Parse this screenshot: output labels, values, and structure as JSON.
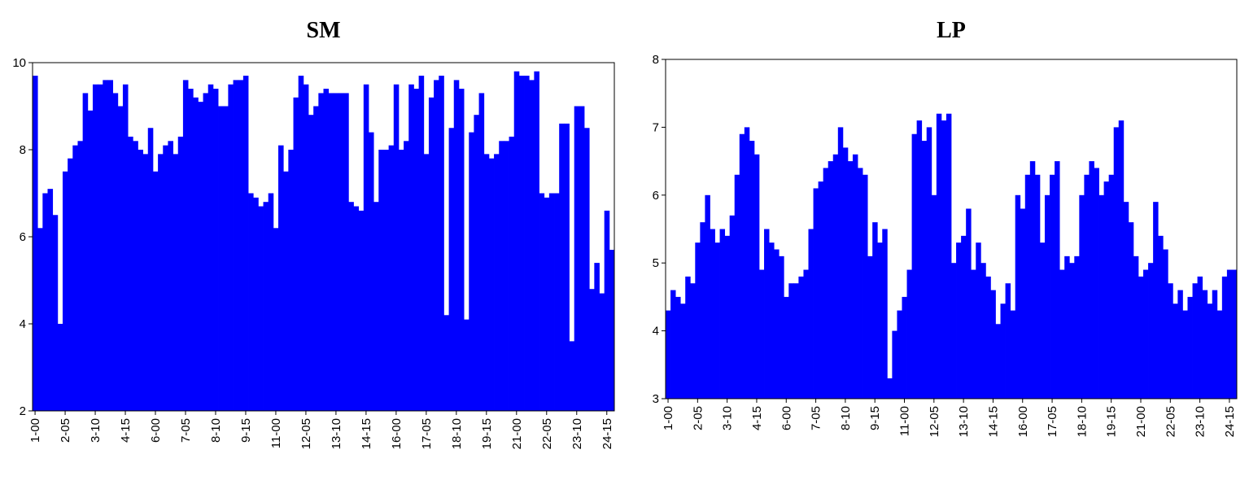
{
  "chart_data": [
    {
      "type": "bar",
      "title": "SM",
      "color": "#0000ff",
      "ylim": [
        2,
        10
      ],
      "yticks": [
        2,
        4,
        6,
        8,
        10
      ],
      "grid": false,
      "categories": [
        "1-00",
        null,
        null,
        null,
        null,
        null,
        "2-05",
        null,
        null,
        null,
        null,
        null,
        "3-10",
        null,
        null,
        null,
        null,
        null,
        "4-15",
        null,
        null,
        null,
        null,
        null,
        "6-00",
        null,
        null,
        null,
        null,
        null,
        "7-05",
        null,
        null,
        null,
        null,
        null,
        "8-10",
        null,
        null,
        null,
        null,
        null,
        "9-15",
        null,
        null,
        null,
        null,
        null,
        "11-00",
        null,
        null,
        null,
        null,
        null,
        "12-05",
        null,
        null,
        null,
        null,
        null,
        "13-10",
        null,
        null,
        null,
        null,
        null,
        "14-15",
        null,
        null,
        null,
        null,
        null,
        "16-00",
        null,
        null,
        null,
        null,
        null,
        "17-05",
        null,
        null,
        null,
        null,
        null,
        "18-10",
        null,
        null,
        null,
        null,
        null,
        "19-15",
        null,
        null,
        null,
        null,
        null,
        "21-00",
        null,
        null,
        null,
        null,
        null,
        "22-05",
        null,
        null,
        null,
        null,
        null,
        "23-10",
        null,
        null,
        null,
        null,
        null,
        "24-15",
        null
      ],
      "values": [
        9.7,
        6.2,
        7.0,
        7.1,
        6.5,
        4.0,
        7.5,
        7.8,
        8.1,
        8.2,
        9.3,
        8.9,
        9.5,
        9.5,
        9.6,
        9.6,
        9.3,
        9.0,
        9.5,
        8.3,
        8.2,
        8.0,
        7.9,
        8.5,
        7.5,
        7.9,
        8.1,
        8.2,
        7.9,
        8.3,
        9.6,
        9.4,
        9.2,
        9.1,
        9.3,
        9.5,
        9.4,
        9.0,
        9.0,
        9.5,
        9.6,
        9.6,
        9.7,
        7.0,
        6.9,
        6.7,
        6.8,
        7.0,
        6.2,
        8.1,
        7.5,
        8.0,
        9.2,
        9.7,
        9.5,
        8.8,
        9.0,
        9.3,
        9.4,
        9.3,
        9.3,
        9.3,
        9.3,
        6.8,
        6.7,
        6.6,
        9.5,
        8.4,
        6.8,
        8.0,
        8.0,
        8.1,
        9.5,
        8.0,
        8.2,
        9.5,
        9.4,
        9.7,
        7.9,
        9.2,
        9.6,
        9.7,
        4.2,
        8.5,
        9.6,
        9.4,
        4.1,
        8.4,
        8.8,
        9.3,
        7.9,
        7.8,
        7.9,
        8.2,
        8.2,
        8.3,
        9.8,
        9.7,
        9.7,
        9.6,
        9.8,
        7.0,
        6.9,
        7.0,
        7.0,
        8.6,
        8.6,
        3.6,
        9.0,
        9.0,
        8.5,
        4.8,
        5.4,
        4.7,
        6.6,
        5.7
      ]
    },
    {
      "type": "bar",
      "title": "LP",
      "color": "#0000ff",
      "ylim": [
        3,
        8
      ],
      "yticks": [
        3,
        4,
        5,
        6,
        7,
        8
      ],
      "grid": false,
      "categories": [
        "1-00",
        null,
        null,
        null,
        null,
        null,
        "2-05",
        null,
        null,
        null,
        null,
        null,
        "3-10",
        null,
        null,
        null,
        null,
        null,
        "4-15",
        null,
        null,
        null,
        null,
        null,
        "6-00",
        null,
        null,
        null,
        null,
        null,
        "7-05",
        null,
        null,
        null,
        null,
        null,
        "8-10",
        null,
        null,
        null,
        null,
        null,
        "9-15",
        null,
        null,
        null,
        null,
        null,
        "11-00",
        null,
        null,
        null,
        null,
        null,
        "12-05",
        null,
        null,
        null,
        null,
        null,
        "13-10",
        null,
        null,
        null,
        null,
        null,
        "14-15",
        null,
        null,
        null,
        null,
        null,
        "16-00",
        null,
        null,
        null,
        null,
        null,
        "17-05",
        null,
        null,
        null,
        null,
        null,
        "18-10",
        null,
        null,
        null,
        null,
        null,
        "19-15",
        null,
        null,
        null,
        null,
        null,
        "21-00",
        null,
        null,
        null,
        null,
        null,
        "22-05",
        null,
        null,
        null,
        null,
        null,
        "23-10",
        null,
        null,
        null,
        null,
        null,
        "24-15",
        null
      ],
      "values": [
        4.3,
        4.6,
        4.5,
        4.4,
        4.8,
        4.7,
        5.3,
        5.6,
        6.0,
        5.5,
        5.3,
        5.5,
        5.4,
        5.7,
        6.3,
        6.9,
        7.0,
        6.8,
        6.6,
        4.9,
        5.5,
        5.3,
        5.2,
        5.1,
        4.5,
        4.7,
        4.7,
        4.8,
        4.9,
        5.5,
        6.1,
        6.2,
        6.4,
        6.5,
        6.6,
        7.0,
        6.7,
        6.5,
        6.6,
        6.4,
        6.3,
        5.1,
        5.6,
        5.3,
        5.5,
        3.3,
        4.0,
        4.3,
        4.5,
        4.9,
        6.9,
        7.1,
        6.8,
        7.0,
        6.0,
        7.2,
        7.1,
        7.2,
        5.0,
        5.3,
        5.4,
        5.8,
        4.9,
        5.3,
        5.0,
        4.8,
        4.6,
        4.1,
        4.4,
        4.7,
        4.3,
        6.0,
        5.8,
        6.3,
        6.5,
        6.3,
        5.3,
        6.0,
        6.3,
        6.5,
        4.9,
        5.1,
        5.0,
        5.1,
        6.0,
        6.3,
        6.5,
        6.4,
        6.0,
        6.2,
        6.3,
        7.0,
        7.1,
        5.9,
        5.6,
        5.1,
        4.8,
        4.9,
        5.0,
        5.9,
        5.4,
        5.2,
        4.7,
        4.4,
        4.6,
        4.3,
        4.5,
        4.7,
        4.8,
        4.6,
        4.4,
        4.6,
        4.3,
        4.8,
        4.9,
        4.9
      ]
    }
  ]
}
